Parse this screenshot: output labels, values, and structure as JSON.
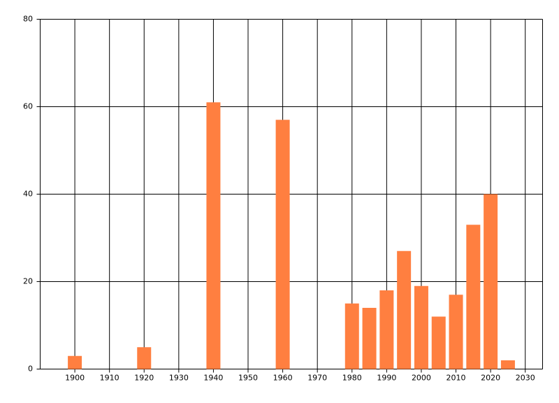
{
  "chart_data": {
    "type": "bar",
    "color": "#ff7f40",
    "x": [
      1900,
      1920,
      1940,
      1960,
      1980,
      1985,
      1990,
      1995,
      2000,
      2005,
      2010,
      2015,
      2020,
      2025
    ],
    "values": [
      3,
      5,
      61,
      57,
      15,
      14,
      18,
      27,
      19,
      12,
      17,
      33,
      40,
      2
    ],
    "xlim": [
      1890,
      2035
    ],
    "xticks": [
      1900,
      1910,
      1920,
      1930,
      1940,
      1950,
      1960,
      1970,
      1980,
      1990,
      2000,
      2010,
      2020,
      2030
    ],
    "ylim": [
      0,
      80
    ],
    "yticks": [
      0,
      20,
      40,
      60,
      80
    ],
    "grid": true
  }
}
